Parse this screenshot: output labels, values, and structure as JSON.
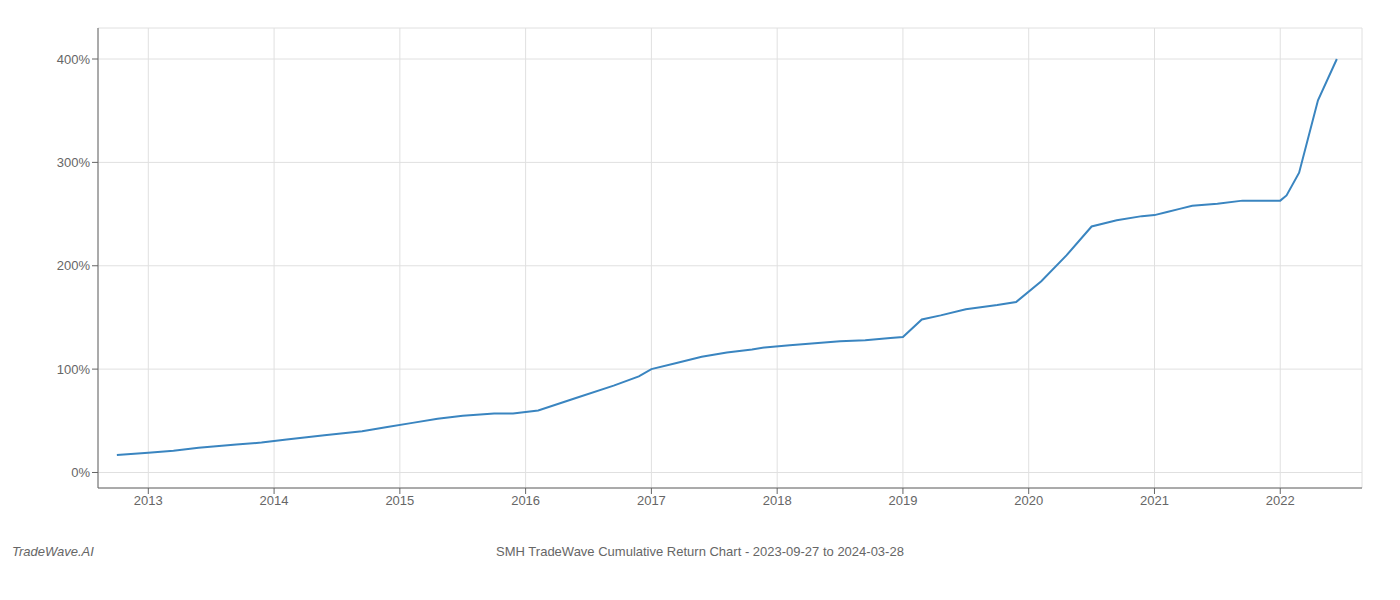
{
  "chart_data": {
    "type": "line",
    "title": "SMH TradeWave Cumulative Return Chart - 2023-09-27 to 2024-03-28",
    "annotations": [
      "TradeWave.AI"
    ],
    "x": [
      2012.75,
      2013.0,
      2013.2,
      2013.4,
      2013.7,
      2013.9,
      2014.1,
      2014.4,
      2014.7,
      2014.9,
      2015.1,
      2015.3,
      2015.5,
      2015.75,
      2015.9,
      2016.1,
      2016.4,
      2016.7,
      2016.9,
      2017.0,
      2017.2,
      2017.4,
      2017.6,
      2017.8,
      2017.9,
      2018.1,
      2018.3,
      2018.5,
      2018.7,
      2018.9,
      2019.0,
      2019.15,
      2019.3,
      2019.5,
      2019.75,
      2019.9,
      2020.1,
      2020.3,
      2020.5,
      2020.7,
      2020.9,
      2021.0,
      2021.1,
      2021.2,
      2021.3,
      2021.5,
      2021.7,
      2021.9,
      2022.0,
      2022.05,
      2022.15,
      2022.3,
      2022.45
    ],
    "values": [
      17,
      19,
      21,
      24,
      27,
      29,
      32,
      36,
      40,
      44,
      48,
      52,
      55,
      57,
      57,
      60,
      72,
      84,
      93,
      100,
      106,
      112,
      116,
      119,
      121,
      123,
      125,
      127,
      128,
      130,
      131,
      148,
      152,
      158,
      162,
      165,
      185,
      210,
      238,
      244,
      248,
      249,
      252,
      255,
      258,
      260,
      263,
      263,
      263,
      268,
      290,
      360,
      400
    ],
    "color": "#3a85c0",
    "xlim": [
      2012.6,
      2022.65
    ],
    "xticks": [
      2013,
      2014,
      2015,
      2016,
      2017,
      2018,
      2019,
      2020,
      2021,
      2022
    ],
    "ylim": [
      -15,
      430
    ],
    "yticks": [
      {
        "value": 0,
        "label": "0%"
      },
      {
        "value": 100,
        "label": "100%"
      },
      {
        "value": 200,
        "label": "200%"
      },
      {
        "value": 300,
        "label": "300%"
      },
      {
        "value": 400,
        "label": "400%"
      }
    ],
    "grid": true
  }
}
